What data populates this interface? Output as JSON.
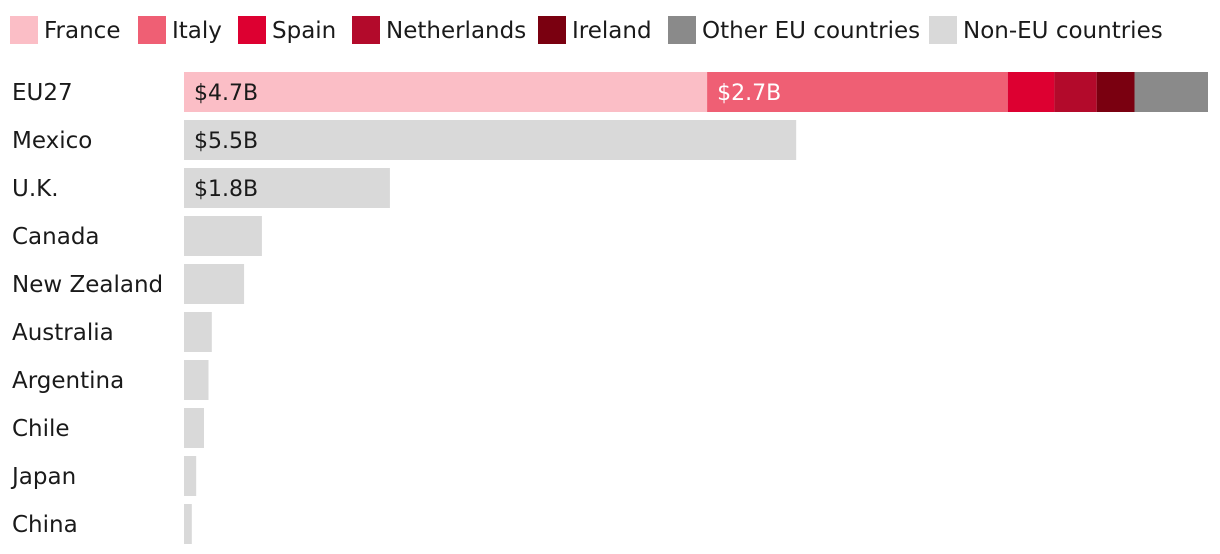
{
  "chart_data": {
    "type": "bar",
    "orientation": "horizontal",
    "stacked": true,
    "title": "",
    "xlabel": "",
    "ylabel": "",
    "grid": false,
    "legend_position": "top",
    "categories": [
      "EU27",
      "Mexico",
      "U.K.",
      "Canada",
      "New Zealand",
      "Australia",
      "Argentina",
      "Chile",
      "Japan",
      "China"
    ],
    "xlim": [
      0,
      9.2
    ],
    "series": [
      {
        "name": "France",
        "color": "#fbbec6",
        "values": [
          4.7,
          0,
          0,
          0,
          0,
          0,
          0,
          0,
          0,
          0
        ],
        "labels": [
          "$4.7B",
          "",
          "",
          "",
          "",
          "",
          "",
          "",
          "",
          ""
        ]
      },
      {
        "name": "Italy",
        "color": "#ef5f74",
        "values": [
          2.7,
          0,
          0,
          0,
          0,
          0,
          0,
          0,
          0,
          0
        ],
        "labels": [
          "$2.7B",
          "",
          "",
          "",
          "",
          "",
          "",
          "",
          "",
          ""
        ]
      },
      {
        "name": "Spain",
        "color": "#dd0031",
        "values": [
          0.42,
          0,
          0,
          0,
          0,
          0,
          0,
          0,
          0,
          0
        ],
        "labels": [
          "",
          "",
          "",
          "",
          "",
          "",
          "",
          "",
          "",
          ""
        ]
      },
      {
        "name": "Netherlands",
        "color": "#b30a2b",
        "values": [
          0.38,
          0,
          0,
          0,
          0,
          0,
          0,
          0,
          0,
          0
        ],
        "labels": [
          "",
          "",
          "",
          "",
          "",
          "",
          "",
          "",
          "",
          ""
        ]
      },
      {
        "name": "Ireland",
        "color": "#7a0010",
        "values": [
          0.34,
          0,
          0,
          0,
          0,
          0,
          0,
          0,
          0,
          0
        ],
        "labels": [
          "",
          "",
          "",
          "",
          "",
          "",
          "",
          "",
          "",
          ""
        ]
      },
      {
        "name": "Other EU countries",
        "color": "#8a8a8a",
        "values": [
          0.7,
          0,
          0,
          0,
          0,
          0,
          0,
          0,
          0,
          0
        ],
        "labels": [
          "",
          "",
          "",
          "",
          "",
          "",
          "",
          "",
          "",
          ""
        ]
      },
      {
        "name": "Non-EU countries",
        "color": "#d9d9d9",
        "values": [
          0,
          5.5,
          1.85,
          0.7,
          0.54,
          0.25,
          0.22,
          0.18,
          0.11,
          0.07
        ],
        "labels": [
          "",
          "$5.5B",
          "$1.8B",
          "",
          "",
          "",
          "",
          "",
          "",
          ""
        ]
      }
    ]
  }
}
